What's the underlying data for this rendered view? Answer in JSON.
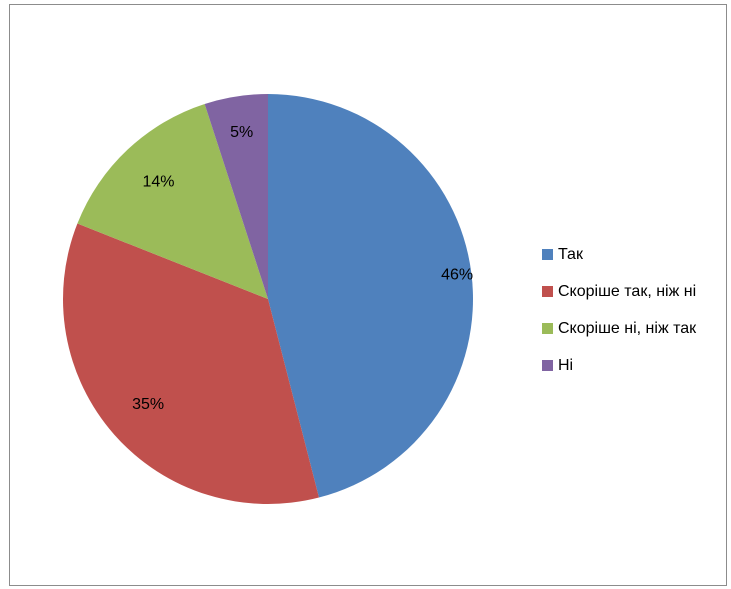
{
  "chart_data": {
    "type": "pie",
    "categories": [
      "Так",
      "Скоріше так, ніж ні",
      "Скоріше ні, ніж так",
      "Ні"
    ],
    "values": [
      46,
      35,
      14,
      5
    ],
    "data_labels": [
      "46%",
      "35%",
      "14%",
      "5%"
    ],
    "colors": [
      "#4F81BD",
      "#C0504D",
      "#9BBB59",
      "#8064A2"
    ],
    "legend_position": "right",
    "start_angle": "top, clockwise"
  }
}
